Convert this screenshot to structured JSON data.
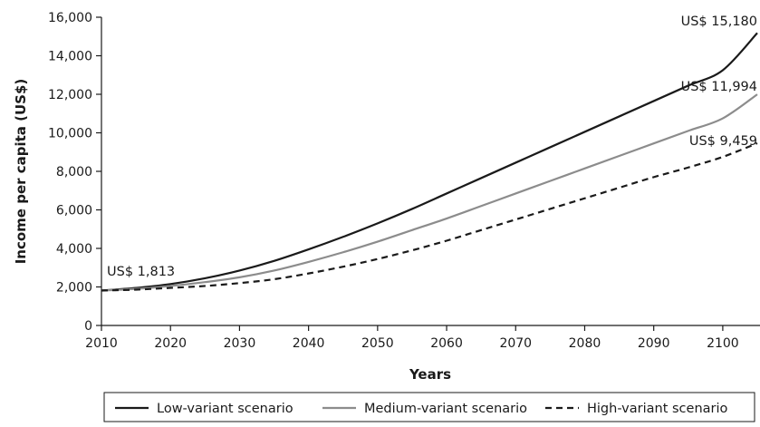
{
  "chart_data": {
    "type": "line",
    "xlabel": "Years",
    "ylabel": "Income per capita (US$)",
    "xlim": [
      2010,
      2105
    ],
    "ylim": [
      0,
      16000
    ],
    "x_ticks": [
      2010,
      2020,
      2030,
      2040,
      2050,
      2060,
      2070,
      2080,
      2090,
      2100
    ],
    "y_ticks": [
      0,
      2000,
      4000,
      6000,
      8000,
      10000,
      12000,
      14000,
      16000
    ],
    "x_tick_labels": [
      "2010",
      "2020",
      "2030",
      "2040",
      "2050",
      "2060",
      "2070",
      "2080",
      "2090",
      "2100"
    ],
    "y_tick_labels": [
      "0",
      "2,000",
      "4,000",
      "6,000",
      "8,000",
      "10,000",
      "12,000",
      "14,000",
      "16,000"
    ],
    "grid": false,
    "legend_position": "bottom",
    "x": [
      2010,
      2015,
      2020,
      2025,
      2030,
      2035,
      2040,
      2045,
      2050,
      2055,
      2060,
      2065,
      2070,
      2075,
      2080,
      2085,
      2090,
      2095,
      2100,
      2105
    ],
    "series": [
      {
        "name": "Low-variant scenario",
        "color": "#1a1a1a",
        "style": "solid",
        "values": [
          1813,
          1950,
          2150,
          2450,
          2850,
          3350,
          3950,
          4600,
          5300,
          6050,
          6850,
          7650,
          8450,
          9250,
          10050,
          10850,
          11650,
          12450,
          13250,
          15180
        ]
      },
      {
        "name": "Medium-variant scenario",
        "color": "#8c8c8c",
        "style": "solid",
        "values": [
          1813,
          1900,
          2050,
          2250,
          2500,
          2850,
          3300,
          3800,
          4350,
          4950,
          5550,
          6200,
          6850,
          7500,
          8150,
          8800,
          9450,
          10100,
          10750,
          11994
        ]
      },
      {
        "name": "High-variant scenario",
        "color": "#1a1a1a",
        "style": "dashed",
        "values": [
          1813,
          1860,
          1950,
          2050,
          2200,
          2400,
          2700,
          3050,
          3450,
          3900,
          4400,
          4950,
          5500,
          6050,
          6600,
          7150,
          7700,
          8200,
          8750,
          9459
        ]
      }
    ],
    "annotations": [
      "US$ 1,813",
      "US$ 15,180",
      "US$ 11,994",
      "US$ 9,459"
    ]
  }
}
